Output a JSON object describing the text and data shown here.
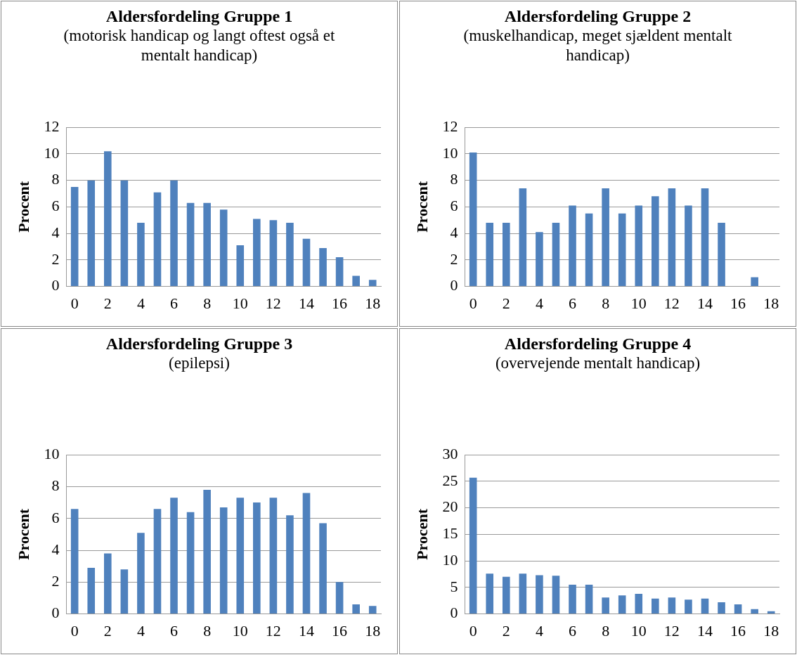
{
  "chart_data": [
    {
      "type": "bar",
      "title": "Aldersfordeling Gruppe 1",
      "subtitle": "(motorisk handicap og langt oftest også et mentalt handicap)",
      "ylabel": "Procent",
      "categories": [
        "0",
        null,
        "2",
        null,
        "4",
        null,
        "6",
        null,
        "8",
        null,
        "10",
        null,
        "12",
        null,
        "14",
        null,
        "16",
        null,
        "18"
      ],
      "values": [
        7.5,
        8.0,
        10.2,
        8.0,
        4.8,
        7.1,
        8.0,
        6.3,
        6.3,
        5.8,
        3.1,
        5.1,
        5.0,
        4.8,
        3.6,
        2.9,
        2.2,
        0.8,
        0.5
      ],
      "color": "#4f81bd",
      "ylim": [
        0,
        12
      ],
      "yticks": [
        0,
        2,
        4,
        6,
        8,
        10,
        12
      ],
      "grid": "y"
    },
    {
      "type": "bar",
      "title": "Aldersfordeling Gruppe 2",
      "subtitle": "(muskelhandicap, meget sjældent mentalt handicap)",
      "ylabel": "Procent",
      "categories": [
        "0",
        null,
        "2",
        null,
        "4",
        null,
        "6",
        null,
        "8",
        null,
        "10",
        null,
        "12",
        null,
        "14",
        null,
        "16",
        null,
        "18"
      ],
      "values": [
        10.1,
        4.8,
        4.8,
        7.4,
        4.1,
        4.8,
        6.1,
        5.5,
        7.4,
        5.5,
        6.1,
        6.8,
        7.4,
        6.1,
        7.4,
        4.8,
        0,
        0.7,
        0
      ],
      "color": "#4f81bd",
      "ylim": [
        0,
        12
      ],
      "yticks": [
        0,
        2,
        4,
        6,
        8,
        10,
        12
      ],
      "grid": "y"
    },
    {
      "type": "bar",
      "title": "Aldersfordeling Gruppe 3",
      "subtitle": "(epilepsi)",
      "ylabel": "Procent",
      "categories": [
        "0",
        null,
        "2",
        null,
        "4",
        null,
        "6",
        null,
        "8",
        null,
        "10",
        null,
        "12",
        null,
        "14",
        null,
        "16",
        null,
        "18"
      ],
      "values": [
        6.6,
        2.9,
        3.8,
        2.8,
        5.1,
        6.6,
        7.3,
        6.4,
        7.8,
        6.7,
        7.3,
        7.0,
        7.3,
        6.2,
        7.6,
        5.7,
        2.0,
        0.6,
        0.5
      ],
      "color": "#4f81bd",
      "ylim": [
        0,
        10
      ],
      "yticks": [
        0,
        2,
        4,
        6,
        8,
        10
      ],
      "grid": "y"
    },
    {
      "type": "bar",
      "title": "Aldersfordeling Gruppe 4",
      "subtitle": "(overvejende mentalt handicap)",
      "ylabel": "Procent",
      "categories": [
        "0",
        null,
        "2",
        null,
        "4",
        null,
        "6",
        null,
        "8",
        null,
        "10",
        null,
        "12",
        null,
        "14",
        null,
        "16",
        null,
        "18"
      ],
      "values": [
        25.7,
        7.6,
        7.0,
        7.6,
        7.3,
        7.2,
        5.5,
        5.5,
        3.1,
        3.5,
        3.8,
        2.9,
        3.1,
        2.7,
        2.9,
        2.2,
        1.8,
        0.9,
        0.5
      ],
      "color": "#4f81bd",
      "ylim": [
        0,
        30
      ],
      "yticks": [
        0,
        5,
        10,
        15,
        20,
        25,
        30
      ],
      "grid": "y"
    }
  ]
}
